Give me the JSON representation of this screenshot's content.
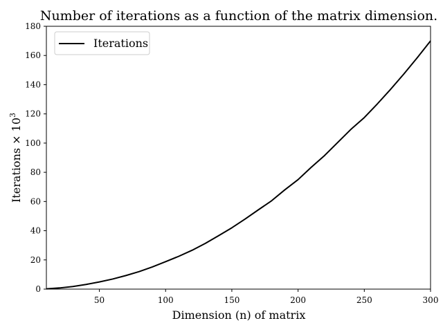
{
  "chart_data": {
    "type": "line",
    "title": "Number of iterations as a function of the matrix dimension.",
    "xlabel": "Dimension (n) of matrix",
    "ylabel_main": "Iterations × 10",
    "ylabel_sup": "3",
    "xlim": [
      10,
      300
    ],
    "ylim": [
      0,
      180
    ],
    "x_ticks": [
      50,
      100,
      150,
      200,
      250,
      300
    ],
    "y_ticks": [
      0,
      20,
      40,
      60,
      80,
      100,
      120,
      140,
      160,
      180
    ],
    "grid": false,
    "legend_placement": "top-left",
    "series": [
      {
        "name": "Iterations",
        "color": "#000000",
        "x": [
          10,
          20,
          30,
          40,
          50,
          60,
          70,
          80,
          90,
          100,
          110,
          120,
          130,
          140,
          150,
          160,
          170,
          180,
          190,
          200,
          210,
          220,
          230,
          240,
          250,
          260,
          270,
          280,
          290,
          300
        ],
        "y": [
          0.2,
          0.8,
          1.8,
          3.2,
          4.9,
          6.9,
          9.3,
          12.0,
          15.2,
          18.8,
          22.5,
          26.6,
          31.3,
          36.6,
          42.0,
          48.0,
          54.3,
          60.5,
          68.0,
          75.0,
          83.5,
          91.5,
          100.5,
          109.5,
          117.5,
          127.0,
          137.0,
          147.5,
          158.5,
          170.0
        ]
      }
    ]
  }
}
